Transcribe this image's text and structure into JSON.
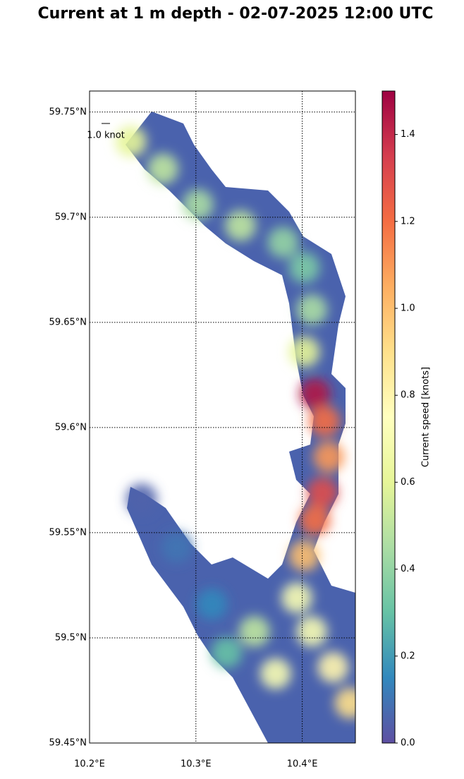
{
  "chart_data": {
    "type": "field",
    "title": "Current at 1 m depth - 02-07-2025 12:00 UTC",
    "colorbar_label": "Current speed [knots]",
    "quiver_key": "1.0 knot",
    "xlim": [
      10.2,
      10.45
    ],
    "ylim": [
      59.45,
      59.76
    ],
    "xticks": [
      {
        "value": 10.2,
        "label": "10.2°E"
      },
      {
        "value": 10.3,
        "label": "10.3°E"
      },
      {
        "value": 10.4,
        "label": "10.4°E"
      }
    ],
    "yticks": [
      {
        "value": 59.45,
        "label": "59.45°N"
      },
      {
        "value": 59.5,
        "label": "59.5°N"
      },
      {
        "value": 59.55,
        "label": "59.55°N"
      },
      {
        "value": 59.6,
        "label": "59.6°N"
      },
      {
        "value": 59.65,
        "label": "59.65°N"
      },
      {
        "value": 59.7,
        "label": "59.7°N"
      },
      {
        "value": 59.75,
        "label": "59.75°N"
      }
    ],
    "clim": [
      0,
      1.5
    ],
    "cticks": [
      {
        "value": 0,
        "label": "0.0"
      },
      0.2,
      0.4,
      0.6,
      0.8,
      {
        "value": 1,
        "label": "1.0"
      },
      1.2,
      1.4
    ],
    "colormap": [
      "#5e4fa2",
      "#3288bd",
      "#66c2a5",
      "#abdda4",
      "#e6f598",
      "#ffffbf",
      "#fee08b",
      "#fdae61",
      "#f46d43",
      "#d53e4f",
      "#9e0142"
    ],
    "grid": true,
    "cells": {
      "lon": [
        10.239,
        10.269,
        10.302,
        10.342,
        10.382,
        10.402,
        10.409,
        10.402,
        10.412,
        10.421,
        10.425,
        10.419,
        10.412,
        10.402,
        10.395,
        10.409,
        10.429,
        10.445,
        10.249,
        10.282,
        10.315,
        10.355,
        10.375,
        10.329
      ],
      "lat": [
        59.736,
        59.723,
        59.706,
        59.696,
        59.688,
        59.676,
        59.656,
        59.636,
        59.616,
        59.603,
        59.586,
        59.569,
        59.556,
        59.539,
        59.519,
        59.503,
        59.486,
        59.469,
        59.566,
        59.543,
        59.516,
        59.503,
        59.483,
        59.493
      ],
      "speed": [
        0.6,
        0.5,
        0.45,
        0.5,
        0.4,
        0.35,
        0.45,
        0.6,
        1.45,
        1.2,
        1.1,
        1.3,
        1.2,
        1.0,
        0.7,
        0.7,
        0.8,
        0.9,
        0.05,
        0.1,
        0.15,
        0.5,
        0.7,
        0.3
      ]
    }
  }
}
